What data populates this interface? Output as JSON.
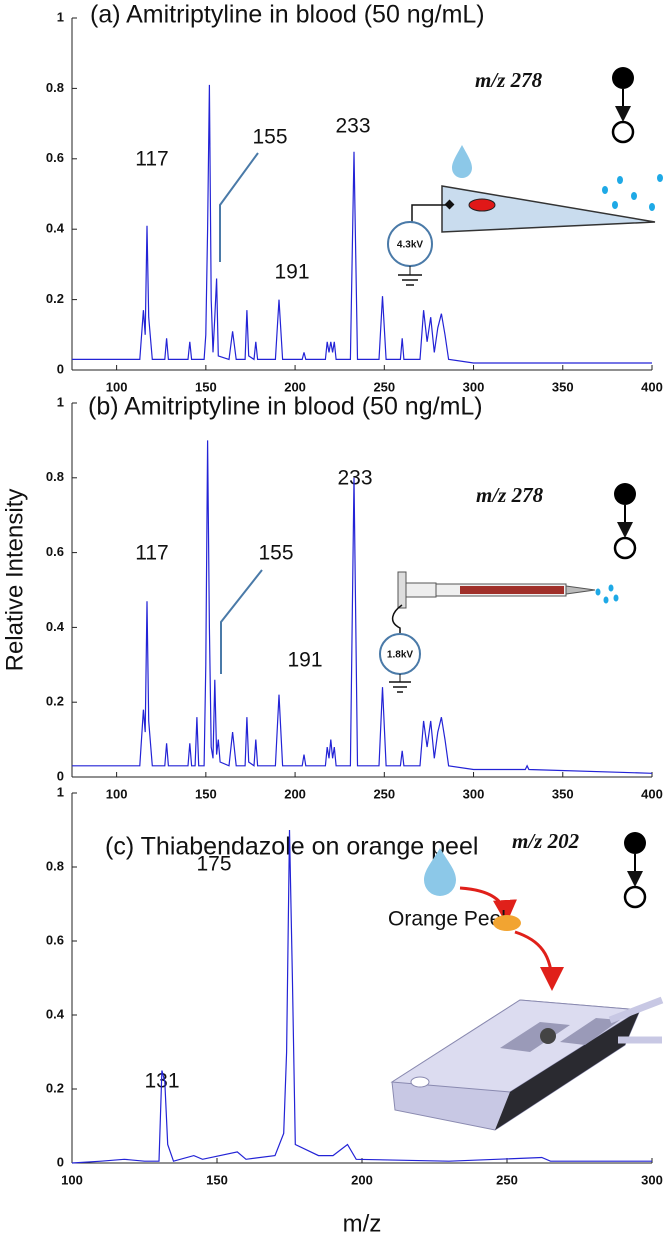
{
  "chart_data": [
    {
      "type": "line",
      "title": "(a)  Amitriptyline in blood (50 ng/mL)",
      "color": "#2323d6",
      "x": [
        75,
        113,
        115,
        116,
        117,
        118,
        120,
        127,
        128,
        129,
        140,
        141,
        142,
        149,
        150,
        151,
        152,
        153,
        154,
        155,
        156,
        157,
        163,
        165,
        167,
        172,
        173,
        174,
        177,
        178,
        179,
        189,
        191,
        193,
        204,
        205,
        206,
        217,
        218,
        219,
        220,
        221,
        222,
        223,
        231,
        233,
        235,
        247,
        249,
        251,
        259,
        260,
        261,
        270,
        272,
        274,
        276,
        278,
        280,
        282,
        284,
        286,
        300,
        400
      ],
      "values": [
        0.03,
        0.03,
        0.17,
        0.1,
        0.41,
        0.15,
        0.03,
        0.03,
        0.09,
        0.03,
        0.03,
        0.08,
        0.03,
        0.03,
        0.1,
        0.4,
        0.81,
        0.2,
        0.05,
        0.15,
        0.26,
        0.04,
        0.03,
        0.11,
        0.03,
        0.03,
        0.17,
        0.04,
        0.03,
        0.08,
        0.03,
        0.03,
        0.2,
        0.03,
        0.03,
        0.05,
        0.03,
        0.03,
        0.08,
        0.05,
        0.08,
        0.05,
        0.08,
        0.03,
        0.03,
        0.62,
        0.03,
        0.03,
        0.21,
        0.03,
        0.03,
        0.09,
        0.03,
        0.03,
        0.17,
        0.08,
        0.15,
        0.05,
        0.12,
        0.16,
        0.1,
        0.03,
        0.02,
        0.02
      ],
      "xlim": [
        75,
        400
      ],
      "ylim": [
        0,
        1
      ],
      "xticks": [
        100,
        150,
        200,
        250,
        300,
        350,
        400
      ],
      "yticks": [
        0,
        0.2,
        0.4,
        0.6,
        0.8,
        1
      ],
      "annotations": [
        "117",
        "155",
        "233",
        "191"
      ],
      "fragment": "m/z 278",
      "voltage": "4.3kV"
    },
    {
      "type": "line",
      "title": "(b) Amitriptyline in blood (50 ng/mL)",
      "color": "#2323d6",
      "ylabel": "Relative Intensity",
      "x": [
        75,
        113,
        115,
        116,
        117,
        118,
        120,
        127,
        128,
        129,
        140,
        141,
        142,
        144,
        145,
        146,
        149,
        150,
        151,
        152,
        153,
        154,
        155,
        156,
        157,
        158,
        163,
        165,
        167,
        172,
        173,
        174,
        177,
        178,
        179,
        189,
        191,
        193,
        204,
        205,
        206,
        217,
        218,
        219,
        220,
        221,
        222,
        223,
        231,
        233,
        235,
        247,
        249,
        251,
        259,
        260,
        261,
        270,
        272,
        274,
        276,
        278,
        280,
        282,
        284,
        286,
        300,
        329,
        330,
        331,
        400
      ],
      "values": [
        0.03,
        0.03,
        0.18,
        0.12,
        0.47,
        0.15,
        0.03,
        0.03,
        0.09,
        0.03,
        0.03,
        0.09,
        0.03,
        0.03,
        0.16,
        0.03,
        0.03,
        0.3,
        0.9,
        0.4,
        0.08,
        0.05,
        0.26,
        0.06,
        0.1,
        0.04,
        0.03,
        0.12,
        0.03,
        0.03,
        0.16,
        0.04,
        0.03,
        0.1,
        0.03,
        0.03,
        0.22,
        0.03,
        0.03,
        0.06,
        0.03,
        0.03,
        0.08,
        0.05,
        0.1,
        0.05,
        0.08,
        0.03,
        0.03,
        0.8,
        0.03,
        0.03,
        0.24,
        0.03,
        0.03,
        0.07,
        0.03,
        0.03,
        0.15,
        0.08,
        0.15,
        0.05,
        0.12,
        0.16,
        0.1,
        0.03,
        0.02,
        0.02,
        0.03,
        0.02,
        0.01
      ],
      "xlim": [
        75,
        400
      ],
      "ylim": [
        0,
        1
      ],
      "xticks": [
        100,
        150,
        200,
        250,
        300,
        350,
        400
      ],
      "yticks": [
        0,
        0.2,
        0.4,
        0.6,
        0.8,
        1
      ],
      "annotations": [
        "117",
        "155",
        "233",
        "191"
      ],
      "fragment": "m/z 278",
      "voltage": "1.8kV"
    },
    {
      "type": "line",
      "title": "(c) Thiabendazole on orange peel",
      "color": "#2323d6",
      "xlabel": "m/z",
      "x": [
        100,
        110,
        118,
        125,
        130,
        131,
        132,
        133,
        135,
        142,
        145,
        157,
        160,
        170,
        173,
        174,
        175,
        176,
        177,
        185,
        190,
        195,
        198,
        230,
        262,
        265,
        300
      ],
      "values": [
        0,
        0.005,
        0.01,
        0.005,
        0.005,
        0.25,
        0.22,
        0.05,
        0.005,
        0.02,
        0.01,
        0.03,
        0.01,
        0.02,
        0.08,
        0.3,
        0.9,
        0.5,
        0.05,
        0.02,
        0.02,
        0.05,
        0.01,
        0.005,
        0.015,
        0.005,
        0.005
      ],
      "xlim": [
        100,
        300
      ],
      "ylim": [
        0,
        1
      ],
      "xticks": [
        100,
        150,
        200,
        250,
        300
      ],
      "yticks": [
        0,
        0.2,
        0.4,
        0.6,
        0.8,
        1
      ],
      "annotations": [
        "131",
        "175"
      ],
      "fragment": "m/z 202",
      "sample": "Orange Peel"
    }
  ]
}
